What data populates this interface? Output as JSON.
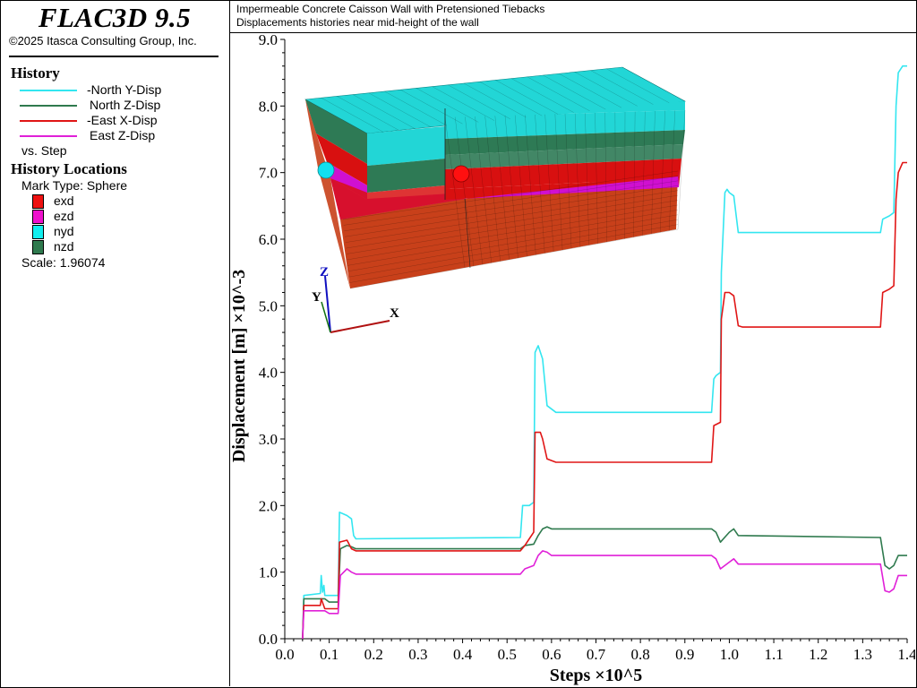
{
  "app": {
    "title": "FLAC3D 9.5",
    "copyright": "©2025 Itasca Consulting Group, Inc."
  },
  "header": {
    "title": "Impermeable Concrete Caisson Wall with Pretensioned Tiebacks",
    "subtitle": "Displacements histories near mid-height of the wall"
  },
  "history": {
    "title": "History",
    "entries": [
      {
        "label": "-North Y-Disp",
        "color": "#33e6f0"
      },
      {
        "label": "North Z-Disp",
        "color": "#2f7a4e"
      },
      {
        "label": "-East X-Disp",
        "color": "#e01616"
      },
      {
        "label": "East Z-Disp",
        "color": "#e020d8"
      }
    ],
    "vs": "vs. Step"
  },
  "locations": {
    "title": "History Locations",
    "mark_type": "Mark Type: Sphere",
    "items": [
      {
        "label": "exd",
        "color": "#ee1111"
      },
      {
        "label": "ezd",
        "color": "#ee11cc"
      },
      {
        "label": "nyd",
        "color": "#11eeee"
      },
      {
        "label": "nzd",
        "color": "#2f7a4e"
      }
    ],
    "scale": "Scale: 1.96074"
  },
  "model_view": {
    "axes": [
      "Z",
      "Y",
      "X"
    ],
    "layer_colors": {
      "top": "#22d6d6",
      "green": "#2e7a55",
      "red": "#d81010",
      "magenta": "#d010d0",
      "base": "#c8401a"
    }
  },
  "chart_data": {
    "type": "line",
    "xlabel": "Steps ×10^5",
    "ylabel": "Displacement [m] ×10^-3",
    "xlim": [
      0,
      1.4
    ],
    "ylim": [
      0,
      9
    ],
    "x_ticks": [
      "0.0",
      "0.1",
      "0.2",
      "0.3",
      "0.4",
      "0.5",
      "0.6",
      "0.7",
      "0.8",
      "0.9",
      "1.0",
      "1.1",
      "1.2",
      "1.3",
      "1.4"
    ],
    "y_ticks": [
      "0.0",
      "1.0",
      "2.0",
      "3.0",
      "4.0",
      "5.0",
      "6.0",
      "7.0",
      "8.0",
      "9.0"
    ],
    "series": [
      {
        "name": "-North Y-Disp",
        "color": "#33e6f0",
        "x": [
          0.04,
          0.043,
          0.08,
          0.082,
          0.085,
          0.088,
          0.09,
          0.1,
          0.12,
          0.123,
          0.14,
          0.15,
          0.155,
          0.16,
          0.53,
          0.535,
          0.55,
          0.56,
          0.563,
          0.57,
          0.58,
          0.59,
          0.61,
          0.96,
          0.965,
          0.97,
          0.98,
          0.982,
          0.99,
          0.995,
          1.0,
          1.01,
          1.02,
          1.03,
          1.34,
          1.345,
          1.36,
          1.37,
          1.375,
          1.38,
          1.39,
          1.41
        ],
        "y": [
          0.0,
          0.65,
          0.68,
          0.95,
          0.7,
          0.8,
          0.65,
          0.65,
          0.65,
          1.9,
          1.85,
          1.8,
          1.55,
          1.5,
          1.52,
          2.0,
          2.0,
          2.05,
          4.3,
          4.4,
          4.2,
          3.5,
          3.4,
          3.4,
          3.9,
          3.95,
          4.0,
          5.5,
          6.7,
          6.75,
          6.7,
          6.65,
          6.1,
          6.1,
          6.1,
          6.3,
          6.35,
          6.4,
          8.0,
          8.5,
          8.6,
          8.6
        ]
      },
      {
        "name": "North Z-Disp",
        "color": "#2f7a4e",
        "x": [
          0.04,
          0.043,
          0.09,
          0.1,
          0.12,
          0.125,
          0.14,
          0.15,
          0.16,
          0.53,
          0.54,
          0.56,
          0.57,
          0.58,
          0.59,
          0.6,
          0.96,
          0.97,
          0.98,
          1.0,
          1.01,
          1.02,
          1.34,
          1.35,
          1.36,
          1.37,
          1.38,
          1.41
        ],
        "y": [
          0.0,
          0.6,
          0.6,
          0.55,
          0.55,
          1.35,
          1.4,
          1.38,
          1.35,
          1.35,
          1.4,
          1.42,
          1.55,
          1.65,
          1.68,
          1.65,
          1.65,
          1.6,
          1.45,
          1.6,
          1.65,
          1.55,
          1.52,
          1.1,
          1.05,
          1.1,
          1.25,
          1.25
        ]
      },
      {
        "name": "-East X-Disp",
        "color": "#e01616",
        "x": [
          0.04,
          0.043,
          0.08,
          0.082,
          0.09,
          0.1,
          0.12,
          0.123,
          0.14,
          0.15,
          0.16,
          0.53,
          0.54,
          0.55,
          0.56,
          0.563,
          0.575,
          0.58,
          0.59,
          0.61,
          0.96,
          0.965,
          0.98,
          0.982,
          0.99,
          1.0,
          1.01,
          1.02,
          1.03,
          1.34,
          1.345,
          1.36,
          1.37,
          1.375,
          1.38,
          1.39,
          1.41
        ],
        "y": [
          0.0,
          0.5,
          0.5,
          0.6,
          0.45,
          0.45,
          0.45,
          1.45,
          1.48,
          1.35,
          1.32,
          1.32,
          1.4,
          1.5,
          1.6,
          3.1,
          3.1,
          3.0,
          2.7,
          2.65,
          2.65,
          3.2,
          3.25,
          4.8,
          5.2,
          5.2,
          5.15,
          4.7,
          4.68,
          4.68,
          5.2,
          5.25,
          5.3,
          6.6,
          7.0,
          7.15,
          7.15
        ]
      },
      {
        "name": "East Z-Disp",
        "color": "#e020d8",
        "x": [
          0.04,
          0.043,
          0.09,
          0.1,
          0.12,
          0.125,
          0.14,
          0.15,
          0.16,
          0.53,
          0.54,
          0.56,
          0.57,
          0.58,
          0.59,
          0.6,
          0.96,
          0.97,
          0.98,
          1.0,
          1.01,
          1.02,
          1.34,
          1.35,
          1.36,
          1.37,
          1.38,
          1.41
        ],
        "y": [
          0.0,
          0.42,
          0.42,
          0.38,
          0.38,
          0.95,
          1.05,
          1.0,
          0.97,
          0.97,
          1.05,
          1.1,
          1.25,
          1.32,
          1.3,
          1.25,
          1.25,
          1.2,
          1.05,
          1.15,
          1.2,
          1.12,
          1.12,
          0.72,
          0.7,
          0.75,
          0.95,
          0.95
        ]
      }
    ]
  }
}
